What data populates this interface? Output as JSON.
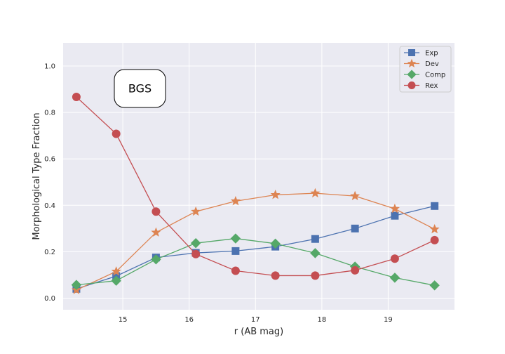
{
  "chart_data": {
    "type": "line",
    "title": "",
    "xlabel": "r (AB mag)",
    "ylabel": "Morphological Type Fraction",
    "xlim": [
      14.1,
      20.0
    ],
    "ylim": [
      -0.05,
      1.1
    ],
    "xticks": [
      15,
      16,
      17,
      18,
      19
    ],
    "yticks": [
      0.0,
      0.2,
      0.4,
      0.6,
      0.8,
      1.0
    ],
    "xtick_labels": [
      "15",
      "16",
      "17",
      "18",
      "19"
    ],
    "ytick_labels": [
      "0.0",
      "0.2",
      "0.4",
      "0.6",
      "0.8",
      "1.0"
    ],
    "x": [
      14.3,
      14.9,
      15.5,
      16.1,
      16.7,
      17.3,
      17.9,
      18.5,
      19.1,
      19.7
    ],
    "grid": true,
    "legend_position": "top-right",
    "annotation": "BGS",
    "series": [
      {
        "name": "Exp",
        "color": "#4c72b0",
        "marker": "square",
        "values": [
          0.04,
          0.095,
          0.175,
          0.195,
          0.203,
          0.222,
          0.255,
          0.3,
          0.355,
          0.397
        ]
      },
      {
        "name": "Dev",
        "color": "#dd8452",
        "marker": "star",
        "values": [
          0.035,
          0.115,
          0.283,
          0.373,
          0.418,
          0.445,
          0.452,
          0.44,
          0.385,
          0.297
        ]
      },
      {
        "name": "Comp",
        "color": "#55a868",
        "marker": "diamond",
        "values": [
          0.057,
          0.075,
          0.167,
          0.237,
          0.257,
          0.235,
          0.194,
          0.136,
          0.088,
          0.055
        ]
      },
      {
        "name": "Rex",
        "color": "#c44e52",
        "marker": "circle",
        "values": [
          0.867,
          0.708,
          0.373,
          0.19,
          0.118,
          0.097,
          0.097,
          0.12,
          0.17,
          0.25
        ]
      }
    ]
  }
}
